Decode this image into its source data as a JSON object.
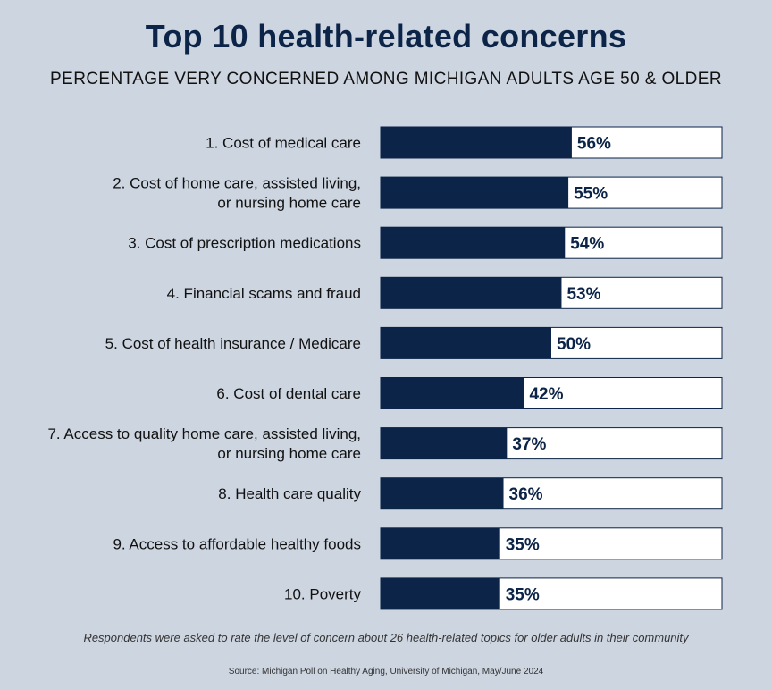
{
  "chart_data": {
    "type": "bar",
    "orientation": "horizontal",
    "title": "Top 10 health-related concerns",
    "subtitle": "PERCENTAGE VERY CONCERNED AMONG MICHIGAN ADULTS AGE 50 & OLDER",
    "categories": [
      [
        "1. Cost of medical care"
      ],
      [
        "2. Cost of home care, assisted living,",
        "or nursing home care"
      ],
      [
        "3. Cost of prescription medications"
      ],
      [
        "4. Financial scams and fraud"
      ],
      [
        "5. Cost of health insurance / Medicare"
      ],
      [
        "6. Cost of dental care"
      ],
      [
        "7. Access to quality home care, assisted living,",
        "or nursing home care"
      ],
      [
        "8. Health care quality"
      ],
      [
        "9. Access to affordable healthy foods"
      ],
      [
        "10. Poverty"
      ]
    ],
    "values": [
      56,
      55,
      54,
      53,
      50,
      42,
      37,
      36,
      35,
      35
    ],
    "data_labels": [
      "56%",
      "55%",
      "54%",
      "53%",
      "50%",
      "42%",
      "37%",
      "36%",
      "35%",
      "35%"
    ],
    "xlim": [
      0,
      100
    ],
    "grid": false,
    "legend": "none",
    "colors": {
      "bar": "#0b2447",
      "track": "#ffffff",
      "value_label": "#0b2447",
      "background": "#cdd5e0"
    }
  },
  "footnote": "Respondents were asked to rate the level of concern about 26 health-related topics for older adults in their community",
  "source": "Source: Michigan Poll on Healthy Aging, University of Michigan, May/June 2024"
}
